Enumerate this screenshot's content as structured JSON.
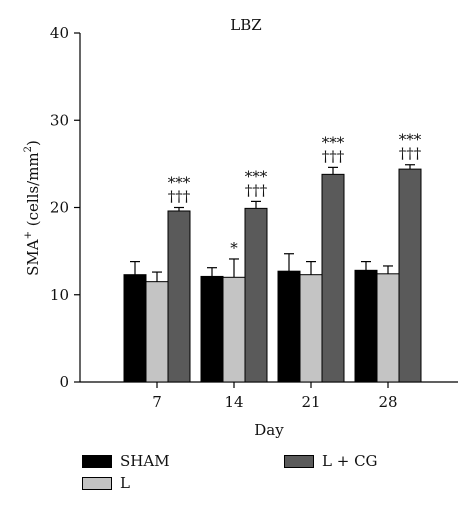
{
  "chart_data": {
    "type": "bar",
    "title": "LBZ",
    "xlabel": "Day",
    "ylabel_main": "SMA",
    "ylabel_sup": "+",
    "ylabel_units": " (cells/mm",
    "ylabel_units_sup": "2",
    "ylabel_close": ")",
    "ylim": [
      0,
      40
    ],
    "yticks": [
      "0",
      "10",
      "20",
      "30",
      "40"
    ],
    "categories": [
      "7",
      "14",
      "21",
      "28"
    ],
    "series": [
      {
        "name": "SHAM",
        "color": "#000000",
        "values": [
          12.3,
          12.1,
          12.7,
          12.8
        ],
        "errors": [
          1.5,
          1.0,
          2.0,
          1.0
        ]
      },
      {
        "name": "L",
        "color": "#c4c4c4",
        "values": [
          11.5,
          12.0,
          12.3,
          12.4
        ],
        "errors": [
          1.1,
          2.1,
          1.5,
          0.9
        ]
      },
      {
        "name": "L + CG",
        "color": "#5a5a5a",
        "values": [
          19.6,
          19.9,
          23.8,
          24.4
        ],
        "errors": [
          0.4,
          0.8,
          0.8,
          0.5
        ]
      }
    ],
    "annotations": [
      {
        "category": "7",
        "series": "L + CG",
        "lines": [
          "***",
          "†††"
        ]
      },
      {
        "category": "14",
        "series": "L",
        "lines": [
          "*"
        ]
      },
      {
        "category": "14",
        "series": "L + CG",
        "lines": [
          "***",
          "†††"
        ]
      },
      {
        "category": "21",
        "series": "L + CG",
        "lines": [
          "***",
          "†††"
        ]
      },
      {
        "category": "28",
        "series": "L + CG",
        "lines": [
          "***",
          "†††"
        ]
      }
    ],
    "legend_position": "bottom"
  }
}
